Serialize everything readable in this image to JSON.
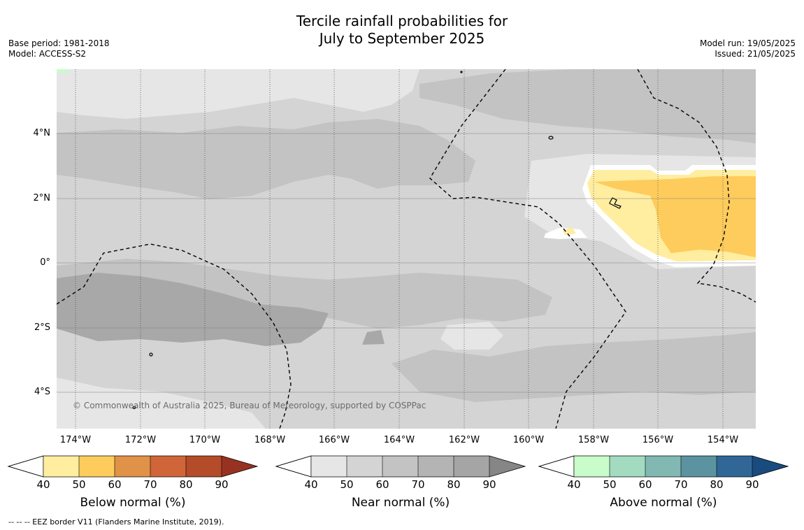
{
  "title": {
    "line1": "Tercile rainfall probabilities for",
    "line2": "July to September 2025"
  },
  "meta": {
    "base_period": "Base period: 1981-2018",
    "model": "Model: ACCESS-S2",
    "model_run": "Model run: 19/05/2025",
    "issued": "Issued: 21/05/2025"
  },
  "map": {
    "credit": "© Commonwealth of Australia 2025, Bureau of Meteorology, supported by COSPPac",
    "lat_ticks": [
      "4°N",
      "2°N",
      "0°",
      "2°S",
      "4°S"
    ],
    "lon_ticks": [
      "174°W",
      "172°W",
      "170°W",
      "168°W",
      "166°W",
      "164°W",
      "162°W",
      "160°W",
      "158°W",
      "156°W",
      "154°W"
    ]
  },
  "colorbars": [
    {
      "title": "Below normal (%)",
      "labels": [
        "40",
        "50",
        "60",
        "70",
        "80",
        "90"
      ],
      "colors": [
        "#ffeda0",
        "#fecc5c",
        "#e09248",
        "#d1653a",
        "#b44c29",
        "#973223"
      ]
    },
    {
      "title": "Near normal (%)",
      "labels": [
        "40",
        "50",
        "60",
        "70",
        "80",
        "90"
      ],
      "colors": [
        "#e6e6e6",
        "#d4d4d4",
        "#c3c3c3",
        "#b4b4b4",
        "#a5a5a5",
        "#868686"
      ]
    },
    {
      "title": "Above normal (%)",
      "labels": [
        "40",
        "50",
        "60",
        "70",
        "80",
        "90"
      ],
      "colors": [
        "#c8fcca",
        "#a3dbc0",
        "#82b8b2",
        "#5c93a0",
        "#306797",
        "#194b7f"
      ]
    }
  ],
  "footnote": "-- -- -- EEZ border V11 (Flanders Marine Institute, 2019)."
}
